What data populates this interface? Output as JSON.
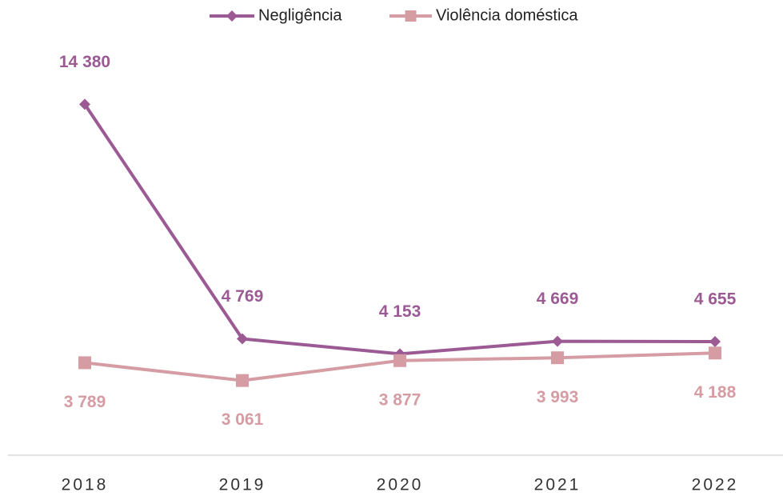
{
  "chart_data": {
    "type": "line",
    "categories": [
      "2018",
      "2019",
      "2020",
      "2021",
      "2022"
    ],
    "series": [
      {
        "name": "Negligência",
        "color": "#9b5a94",
        "marker": "diamond",
        "values": [
          14380,
          4769,
          4153,
          4669,
          4655
        ],
        "value_labels": [
          "14 380",
          "4 769",
          "4 153",
          "4 669",
          "4 655"
        ],
        "label_position": "above"
      },
      {
        "name": "Violência doméstica",
        "color": "#d59ca3",
        "marker": "square",
        "values": [
          3789,
          3061,
          3877,
          3993,
          4188
        ],
        "value_labels": [
          "3 789",
          "3 061",
          "3 877",
          "3 993",
          "4 188"
        ],
        "label_position": "below"
      }
    ],
    "ylim": [
      0,
      16000
    ],
    "legend": "top"
  }
}
